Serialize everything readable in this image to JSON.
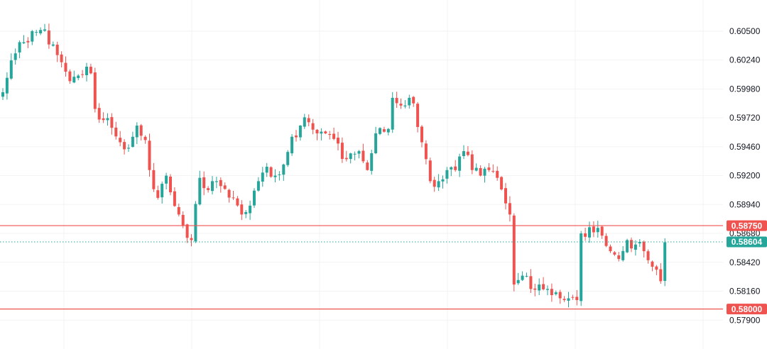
{
  "chart_data": {
    "type": "candlestick",
    "title": "",
    "xlabel": "",
    "ylabel": "",
    "ylim": [
      0.5764,
      0.6078
    ],
    "y_ticks": [
      0.605,
      0.6024,
      0.5998,
      0.5972,
      0.5946,
      0.592,
      0.5894,
      0.5868,
      0.5842,
      0.5816,
      0.579
    ],
    "y_tick_labels": [
      "0.60500",
      "0.60240",
      "0.59980",
      "0.59720",
      "0.59460",
      "0.59200",
      "0.58940",
      "0.58680",
      "0.58420",
      "0.58160",
      "0.57900"
    ],
    "grid": true,
    "colors": {
      "up": "#26a69a",
      "down": "#ef5350",
      "level_line": "#ef5350",
      "price_line": "#26a69a",
      "grid": "#f3f3f3"
    },
    "levels": [
      {
        "value": 0.5875,
        "label": "0.58750",
        "color": "#ef5350",
        "style": "solid"
      },
      {
        "value": 0.58,
        "label": "0.58000",
        "color": "#ef5350",
        "style": "solid"
      }
    ],
    "last_price": {
      "value": 0.58604,
      "label": "0.58604",
      "color": "#26a69a",
      "style": "dotted"
    },
    "anchors": [
      [
        0,
        0.5995
      ],
      [
        1,
        0.6008
      ],
      [
        3,
        0.603
      ],
      [
        5,
        0.604
      ],
      [
        7,
        0.605
      ],
      [
        9,
        0.6051
      ],
      [
        12,
        0.6038
      ],
      [
        14,
        0.6022
      ],
      [
        16,
        0.6005
      ],
      [
        18,
        0.601
      ],
      [
        20,
        0.6018
      ],
      [
        21,
        0.6012
      ],
      [
        22,
        0.598
      ],
      [
        24,
        0.597
      ],
      [
        26,
        0.5963
      ],
      [
        28,
        0.595
      ],
      [
        30,
        0.5945
      ],
      [
        32,
        0.5965
      ],
      [
        34,
        0.5952
      ],
      [
        35,
        0.5925
      ],
      [
        37,
        0.59
      ],
      [
        39,
        0.592
      ],
      [
        40,
        0.5905
      ],
      [
        42,
        0.5885
      ],
      [
        45,
        0.5862
      ],
      [
        47,
        0.5918
      ],
      [
        49,
        0.5907
      ],
      [
        51,
        0.5915
      ],
      [
        53,
        0.5908
      ],
      [
        55,
        0.59
      ],
      [
        57,
        0.5885
      ],
      [
        59,
        0.5893
      ],
      [
        61,
        0.5915
      ],
      [
        63,
        0.5928
      ],
      [
        65,
        0.592
      ],
      [
        67,
        0.593
      ],
      [
        69,
        0.5955
      ],
      [
        71,
        0.5965
      ],
      [
        73,
        0.5968
      ],
      [
        75,
        0.5958
      ],
      [
        77,
        0.5958
      ],
      [
        79,
        0.5953
      ],
      [
        81,
        0.5935
      ],
      [
        83,
        0.594
      ],
      [
        85,
        0.5942
      ],
      [
        87,
        0.5925
      ],
      [
        89,
        0.5958
      ],
      [
        92,
        0.5962
      ],
      [
        93,
        0.599
      ],
      [
        95,
        0.5983
      ],
      [
        97,
        0.599
      ],
      [
        98,
        0.5985
      ],
      [
        100,
        0.595
      ],
      [
        102,
        0.5915
      ],
      [
        104,
        0.5915
      ],
      [
        106,
        0.5925
      ],
      [
        108,
        0.5925
      ],
      [
        110,
        0.5942
      ],
      [
        112,
        0.5925
      ],
      [
        114,
        0.592
      ],
      [
        116,
        0.5925
      ],
      [
        118,
        0.5918
      ],
      [
        120,
        0.5895
      ],
      [
        121,
        0.5885
      ],
      [
        122,
        0.5822
      ],
      [
        124,
        0.583
      ],
      [
        126,
        0.5818
      ],
      [
        128,
        0.5822
      ],
      [
        130,
        0.5818
      ],
      [
        132,
        0.5815
      ],
      [
        134,
        0.5808
      ],
      [
        137,
        0.5808
      ],
      [
        138,
        0.5868
      ],
      [
        141,
        0.5869
      ],
      [
        143,
        0.5866
      ],
      [
        145,
        0.5852
      ],
      [
        147,
        0.5845
      ],
      [
        149,
        0.5862
      ],
      [
        151,
        0.5858
      ],
      [
        153,
        0.5852
      ],
      [
        155,
        0.5838
      ],
      [
        157,
        0.5825
      ],
      [
        158,
        0.586
      ]
    ]
  }
}
